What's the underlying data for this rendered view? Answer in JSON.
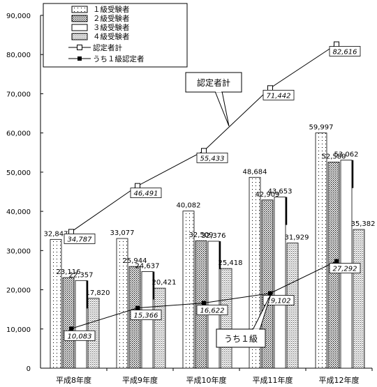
{
  "chart_data": {
    "type": "bar",
    "categories": [
      "平成8年度",
      "平成9年度",
      "平成10年度",
      "平成11年度",
      "平成12年度"
    ],
    "y_ticks": [
      "0",
      "10,000",
      "20,000",
      "30,000",
      "40,000",
      "50,000",
      "60,000",
      "70,000",
      "80,000",
      "90,000"
    ],
    "ylim": [
      0,
      90000
    ],
    "series": [
      {
        "name": "１級受験者",
        "kind": "bar",
        "values": [
          32847,
          33077,
          40082,
          48684,
          59997
        ],
        "labels": [
          "32,847",
          "33,077",
          "40,082",
          "48,684",
          "59,997"
        ]
      },
      {
        "name": "２級受験者",
        "kind": "bar",
        "values": [
          23116,
          25944,
          32509,
          42909,
          52580
        ],
        "labels": [
          "23,116",
          "25,944",
          "32,509",
          "42,909",
          "52,580"
        ]
      },
      {
        "name": "３級受験者",
        "kind": "bar",
        "values": [
          22357,
          24637,
          32376,
          43653,
          53062
        ],
        "labels": [
          "22,357",
          "24,637",
          "32,376",
          "43,653",
          "53,062"
        ]
      },
      {
        "name": "４級受験者",
        "kind": "bar",
        "values": [
          17820,
          20421,
          25418,
          31929,
          35382
        ],
        "labels": [
          "17,820",
          "20,421",
          "25,418",
          "31,929",
          "35,382"
        ]
      },
      {
        "name": "認定者計",
        "kind": "line",
        "values": [
          34787,
          46491,
          55433,
          71442,
          82616
        ],
        "labels": [
          "34,787",
          "46,491",
          "55,433",
          "71,442",
          "82,616"
        ]
      },
      {
        "name": "うち１級認定者",
        "kind": "line",
        "values": [
          10083,
          15366,
          16622,
          19102,
          27292
        ],
        "labels": [
          "10,083",
          "15,366",
          "16,622",
          "19,102",
          "27,292"
        ]
      }
    ],
    "annotations": [
      "認定者計",
      "うち１級"
    ],
    "legend_position": "top-left",
    "grid": false
  }
}
